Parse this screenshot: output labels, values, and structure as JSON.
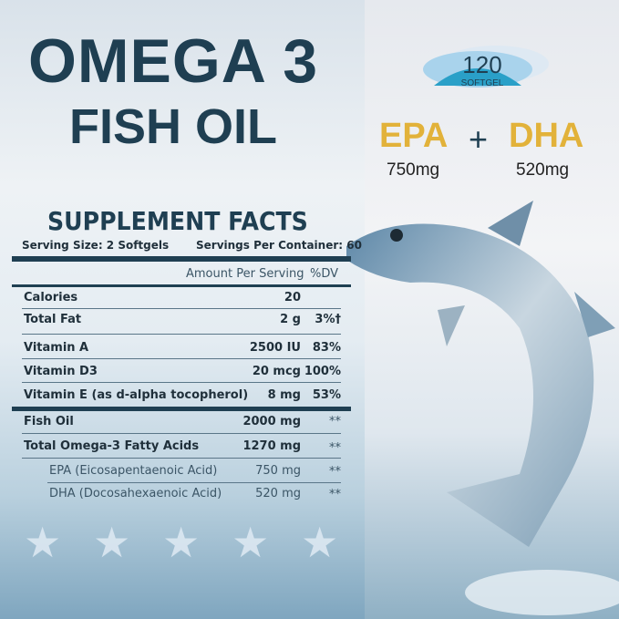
{
  "title": {
    "line1": "OMEGA 3",
    "line2": "FISH OIL"
  },
  "badge": {
    "count": "120",
    "unit": "SOFTGEL"
  },
  "highlights": {
    "epa": "EPA",
    "plus": "+",
    "dha": "DHA",
    "epa_amount": "750mg",
    "dha_amount": "520mg"
  },
  "facts": {
    "heading": "SUPPLEMENT FACTS",
    "serving_size": "Serving Size:  2 Softgels",
    "servings_per_container": "Servings Per Container: 60",
    "col_amount": "Amount Per Serving",
    "col_dv": "%DV",
    "rows": [
      {
        "name": "Calories",
        "amount": "20",
        "dv": ""
      },
      {
        "name": "Total Fat",
        "amount": "2 g",
        "dv": "3%†"
      },
      {
        "name": "Vitamin A",
        "amount": "2500 IU",
        "dv": "83%"
      },
      {
        "name": "Vitamin D3",
        "amount": "20 mcg",
        "dv": "100%"
      },
      {
        "name": "Vitamin E (as d-alpha tocopherol)",
        "amount": "8 mg",
        "dv": "53%"
      },
      {
        "name": "Fish Oil",
        "amount": "2000 mg",
        "dv": "**"
      },
      {
        "name": "Total Omega-3 Fatty Acids",
        "amount": "1270 mg",
        "dv": "**"
      },
      {
        "name": "EPA (Eicosapentaenoic Acid)",
        "amount": "750 mg",
        "dv": "**"
      },
      {
        "name": "DHA (Docosahexaenoic Acid)",
        "amount": "520 mg",
        "dv": "**"
      }
    ]
  },
  "rating": {
    "stars": 5
  },
  "colors": {
    "navy": "#1f3f52",
    "gold": "#e2b23a",
    "badge": "#2aa0c8"
  }
}
